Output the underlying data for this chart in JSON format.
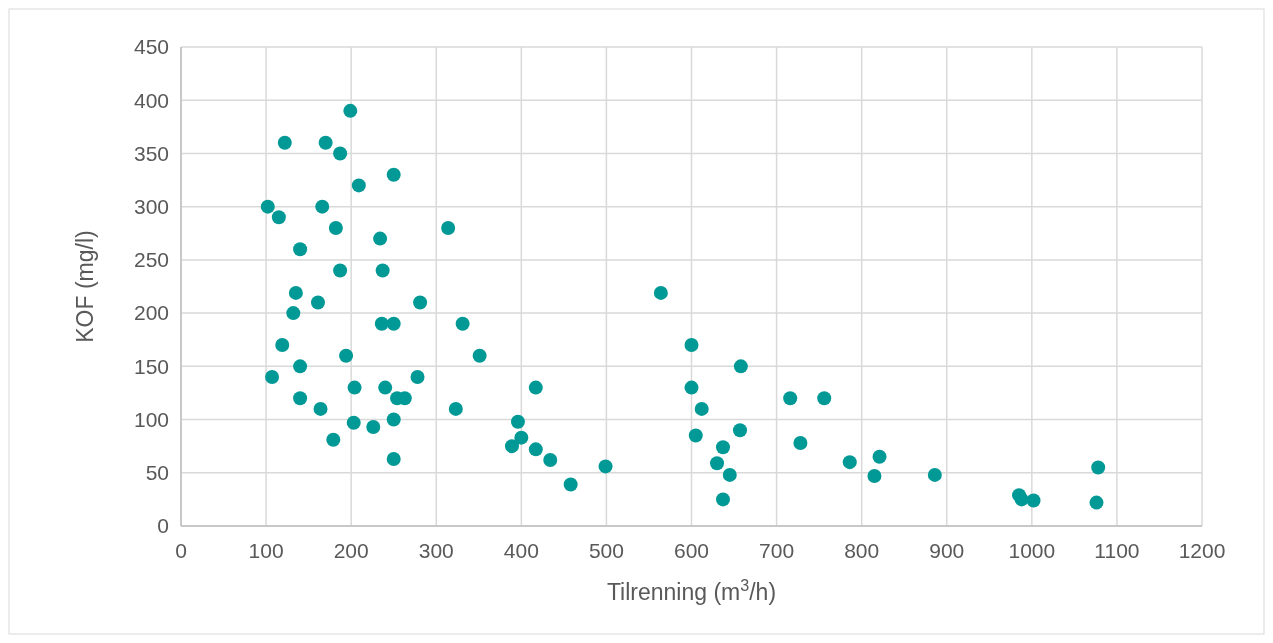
{
  "chart_data": {
    "type": "scatter",
    "xlabel": "Tilrenning (m$^{3}$/h)",
    "ylabel": "KOF (mg/l)",
    "xlim": [
      0,
      1200
    ],
    "xticks": [
      0,
      100,
      200,
      300,
      400,
      500,
      600,
      700,
      800,
      900,
      1000,
      1100,
      1200
    ],
    "ylim": [
      0,
      450
    ],
    "yticks": [
      0,
      50,
      100,
      150,
      200,
      250,
      300,
      350,
      400,
      450
    ],
    "grid": true,
    "marker": "circle",
    "series": [
      {
        "color": "#009995",
        "x": [
          199,
          122,
          170,
          187,
          209,
          250,
          102,
          166,
          115,
          182,
          234,
          314,
          140,
          187,
          237,
          135,
          161,
          281,
          132,
          236,
          250,
          331,
          119,
          194,
          351,
          140,
          107,
          278,
          204,
          240,
          417,
          140,
          254,
          263,
          164,
          323,
          203,
          226,
          250,
          396,
          179,
          400,
          389,
          417,
          434,
          250,
          458,
          499,
          564,
          600,
          600,
          612,
          658,
          657,
          605,
          637,
          630,
          645,
          637,
          716,
          756,
          728,
          786,
          821,
          815,
          886,
          985,
          988,
          1002,
          1078,
          1076
        ],
        "values": [
          390,
          360,
          360,
          350,
          320,
          330,
          300,
          300,
          290,
          280,
          270,
          280,
          260,
          240,
          240,
          219,
          210,
          210,
          200,
          190,
          190,
          190,
          170,
          160,
          160,
          150,
          140,
          140,
          130,
          130,
          130,
          120,
          120,
          120,
          110,
          110,
          97,
          93,
          100,
          98,
          81,
          83,
          75,
          72,
          62,
          63,
          39,
          56,
          219,
          170,
          130,
          110,
          150,
          90,
          85,
          74,
          59,
          48,
          25,
          120,
          120,
          78,
          60,
          65,
          47,
          48,
          29,
          25,
          24,
          55,
          22
        ]
      }
    ]
  }
}
